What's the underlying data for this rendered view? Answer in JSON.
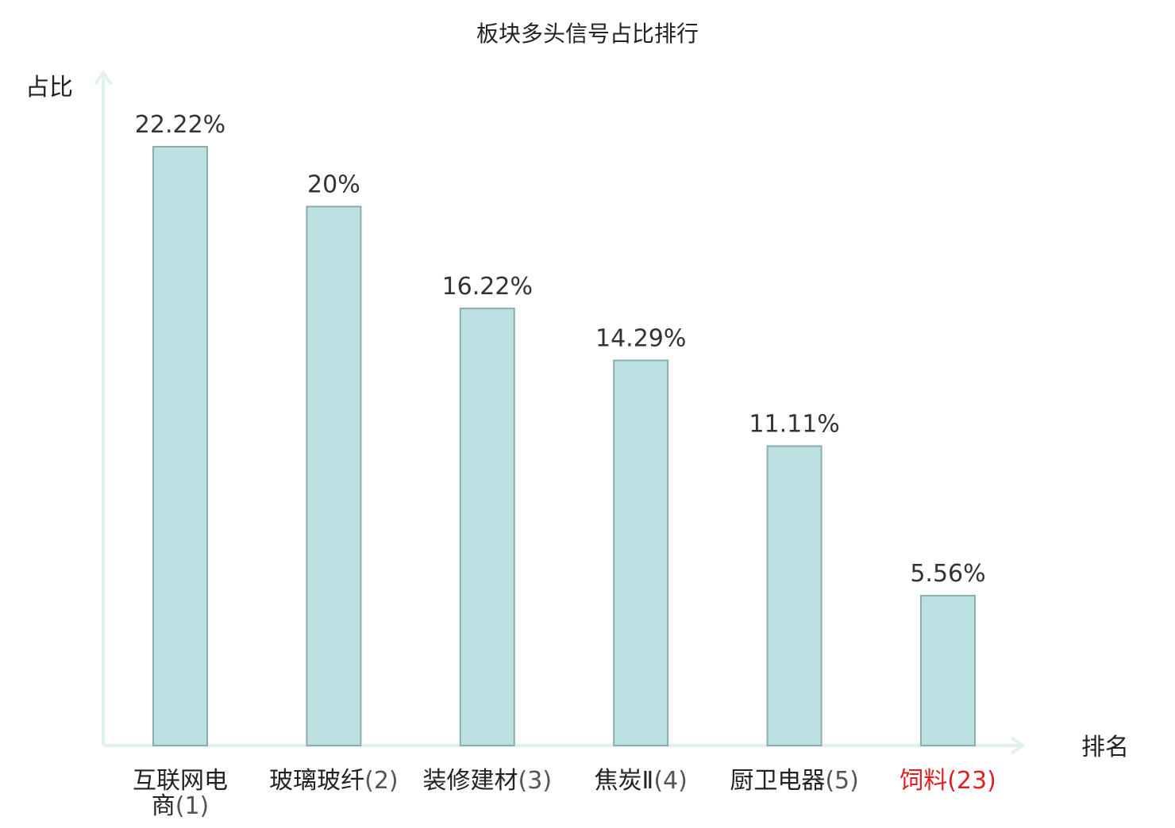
{
  "chart_data": {
    "type": "bar",
    "title": "板块多头信号占比排行",
    "ylabel": "占比",
    "xlabel": "排名",
    "ylim": [
      0,
      25
    ],
    "grid": false,
    "categories": [
      {
        "name_lines": [
          "互联网电",
          "商"
        ],
        "rank": "(1)",
        "highlight": false
      },
      {
        "name_lines": [
          "玻璃玻纤"
        ],
        "rank": "(2)",
        "highlight": false
      },
      {
        "name_lines": [
          "装修建材"
        ],
        "rank": "(3)",
        "highlight": false
      },
      {
        "name_lines": [
          "焦炭Ⅱ"
        ],
        "rank": "(4)",
        "highlight": false
      },
      {
        "name_lines": [
          "厨卫电器"
        ],
        "rank": "(5)",
        "highlight": false
      },
      {
        "name_lines": [
          "饲料"
        ],
        "rank": "(23)",
        "highlight": true
      }
    ],
    "values": [
      22.22,
      20,
      16.22,
      14.29,
      11.11,
      5.56
    ],
    "value_labels": [
      "22.22%",
      "20%",
      "16.22%",
      "14.29%",
      "11.11%",
      "5.56%"
    ]
  },
  "colors": {
    "bar_fill": "#bde0e2",
    "bar_stroke": "#8aaeb0",
    "axis": "#e0f2f0",
    "text": "#222222",
    "label_text": "#333333",
    "rank_text": "#555555",
    "highlight": "#e02020"
  }
}
